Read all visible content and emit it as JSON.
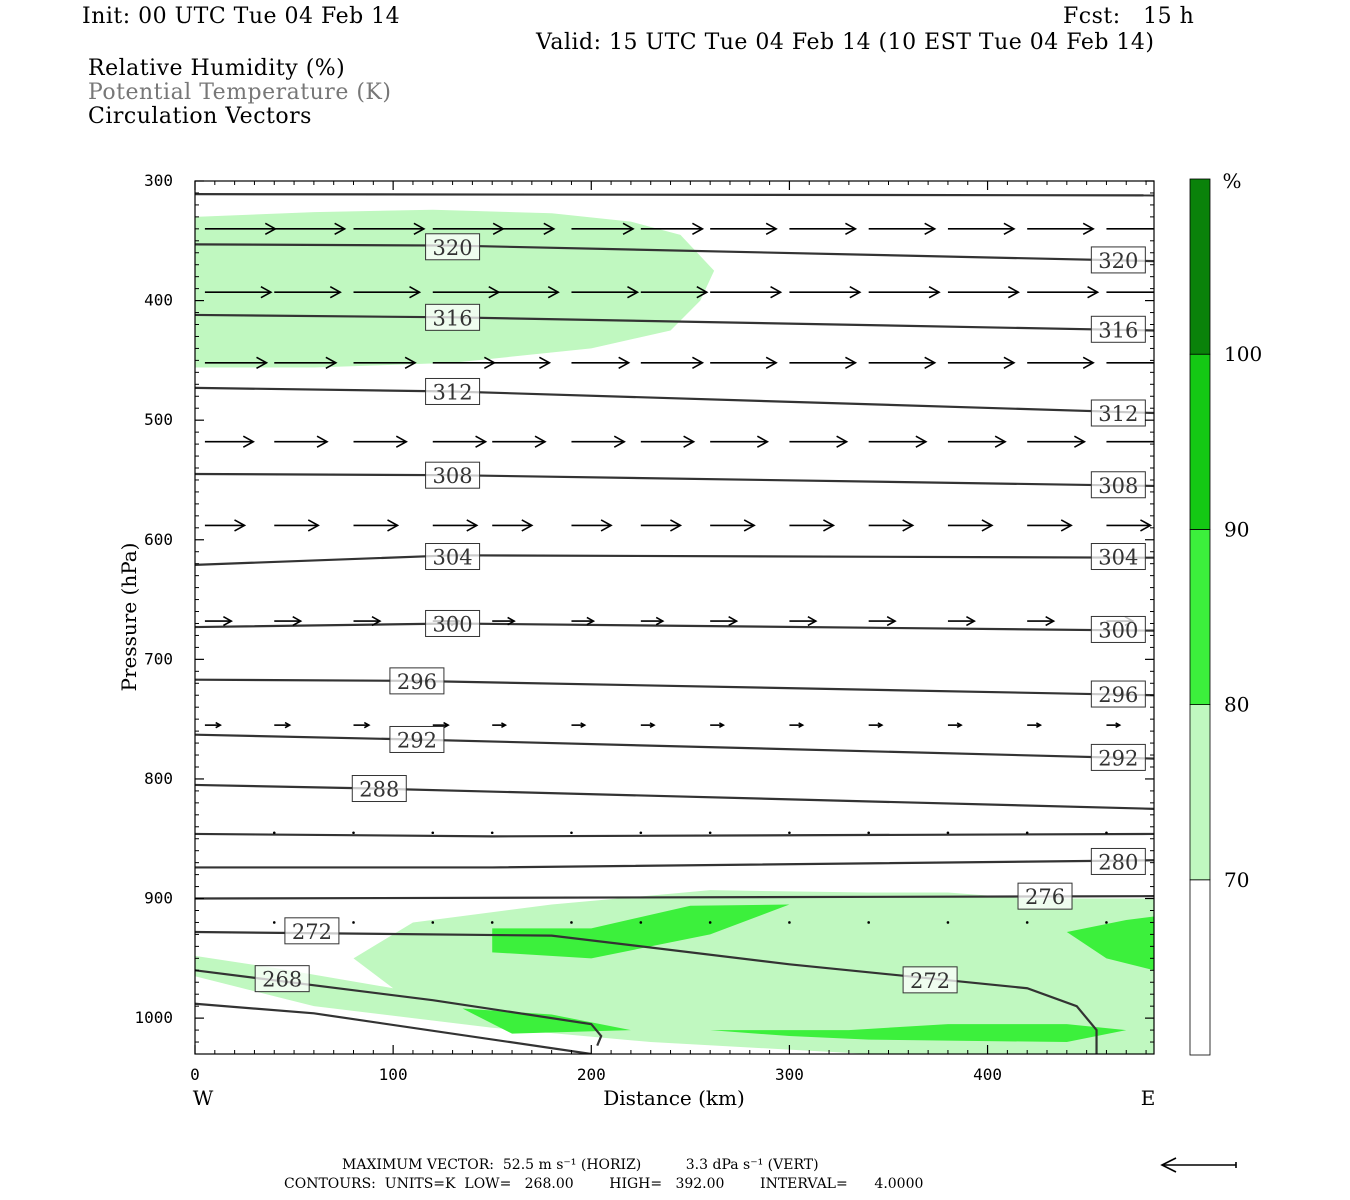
{
  "header": {
    "init": "Init: 00 UTC Tue 04 Feb 14",
    "fcst": "Fcst:   15 h",
    "valid": "Valid: 15 UTC Tue 04 Feb 14 (10 EST Tue 04 Feb 14)",
    "fields": [
      "Relative Humidity (%)",
      "Potential Temperature (K)",
      "Circulation Vectors"
    ]
  },
  "footer": {
    "max_vector": "MAXIMUM VECTOR:  52.5 m s⁻¹ (HORIZ)          3.3 dPa s⁻¹ (VERT)",
    "contours": "CONTOURS:  UNITS=K  LOW=   268.00        HIGH=   392.00        INTERVAL=      4.0000"
  },
  "colors": {
    "rh70": "#c0f8c0",
    "rh80": "#3cf03c",
    "rh90": "#14c814",
    "rh100": "#0a820a",
    "contour": "#333333"
  },
  "chart_data": {
    "type": "cross-section",
    "xlabel": "Distance (km)",
    "ylabel": "Pressure (hPa)",
    "xlim": [
      0,
      484
    ],
    "ylim": [
      1030,
      300
    ],
    "x_ticks": [
      0,
      100,
      200,
      300,
      400
    ],
    "y_ticks": [
      300,
      400,
      500,
      600,
      700,
      800,
      900,
      1000
    ],
    "x_end_labels": {
      "left": "W",
      "right": "E"
    },
    "colorbar": {
      "unit": "%",
      "levels": [
        70,
        80,
        90,
        100
      ],
      "labels": [
        "70",
        "80",
        "90",
        "100"
      ]
    },
    "theta_contours": [
      {
        "label": "",
        "points": [
          [
            0,
            311
          ],
          [
            484,
            312
          ]
        ]
      },
      {
        "label": "320",
        "points": [
          [
            0,
            353
          ],
          [
            130,
            354
          ],
          [
            484,
            367
          ]
        ],
        "label_at": [
          [
            130,
            355
          ],
          [
            466,
            366
          ]
        ]
      },
      {
        "label": "316",
        "points": [
          [
            0,
            412
          ],
          [
            130,
            414
          ],
          [
            484,
            425
          ]
        ],
        "label_at": [
          [
            130,
            414
          ],
          [
            466,
            424
          ]
        ]
      },
      {
        "label": "312",
        "points": [
          [
            0,
            473
          ],
          [
            130,
            476
          ],
          [
            484,
            494
          ]
        ],
        "label_at": [
          [
            130,
            476
          ],
          [
            466,
            494
          ]
        ]
      },
      {
        "label": "308",
        "points": [
          [
            0,
            545
          ],
          [
            130,
            546
          ],
          [
            484,
            555
          ]
        ],
        "label_at": [
          [
            130,
            546
          ],
          [
            466,
            554
          ]
        ]
      },
      {
        "label": "304",
        "points": [
          [
            0,
            621
          ],
          [
            130,
            613
          ],
          [
            484,
            615
          ]
        ],
        "label_at": [
          [
            130,
            614
          ],
          [
            466,
            614
          ]
        ]
      },
      {
        "label": "300",
        "points": [
          [
            0,
            673
          ],
          [
            130,
            670
          ],
          [
            484,
            676
          ]
        ],
        "label_at": [
          [
            130,
            670
          ],
          [
            466,
            675
          ]
        ]
      },
      {
        "label": "296",
        "points": [
          [
            0,
            717
          ],
          [
            110,
            718
          ],
          [
            484,
            730
          ]
        ],
        "label_at": [
          [
            112,
            718
          ],
          [
            466,
            729
          ]
        ]
      },
      {
        "label": "292",
        "points": [
          [
            0,
            763
          ],
          [
            110,
            767
          ],
          [
            484,
            783
          ]
        ],
        "label_at": [
          [
            112,
            767
          ],
          [
            466,
            782
          ]
        ]
      },
      {
        "label": "288",
        "points": [
          [
            0,
            805
          ],
          [
            90,
            808
          ],
          [
            484,
            825
          ]
        ],
        "label_at": [
          [
            93,
            808
          ]
        ]
      },
      {
        "label": "",
        "points": [
          [
            0,
            846
          ],
          [
            150,
            848
          ],
          [
            484,
            846
          ]
        ]
      },
      {
        "label": "280",
        "points": [
          [
            0,
            874
          ],
          [
            150,
            874
          ],
          [
            484,
            868
          ]
        ],
        "label_at": [
          [
            466,
            869
          ]
        ]
      },
      {
        "label": "276",
        "points": [
          [
            0,
            900
          ],
          [
            484,
            898
          ]
        ],
        "label_at": [
          [
            429,
            898
          ]
        ]
      },
      {
        "label": "272",
        "points": [
          [
            0,
            928
          ],
          [
            180,
            931
          ],
          [
            300,
            955
          ],
          [
            420,
            975
          ],
          [
            445,
            990
          ],
          [
            455,
            1010
          ],
          [
            455,
            1030
          ]
        ],
        "label_at": [
          [
            59,
            927
          ],
          [
            371,
            968
          ]
        ]
      },
      {
        "label": "268",
        "points": [
          [
            0,
            960
          ],
          [
            120,
            985
          ],
          [
            200,
            1005
          ],
          [
            205,
            1015
          ],
          [
            203,
            1023
          ]
        ],
        "label_at": [
          [
            44,
            967
          ]
        ]
      },
      {
        "label": "",
        "points": [
          [
            0,
            988
          ],
          [
            60,
            996
          ],
          [
            200,
            1030
          ]
        ]
      }
    ],
    "vector_levels": [
      {
        "p": 340,
        "x": [
          5,
          40,
          80,
          120,
          150,
          190,
          225,
          260,
          300,
          340,
          380,
          420,
          460
        ],
        "u": [
          32,
          32,
          32,
          32,
          28,
          28,
          28,
          30,
          30,
          30,
          30,
          30,
          30
        ]
      },
      {
        "p": 393,
        "x": [
          5,
          40,
          80,
          120,
          150,
          190,
          225,
          260,
          300,
          340,
          380,
          420,
          460
        ],
        "u": [
          30,
          30,
          30,
          30,
          30,
          30,
          30,
          32,
          32,
          32,
          32,
          32,
          32
        ]
      },
      {
        "p": 452,
        "x": [
          5,
          40,
          80,
          120,
          150,
          190,
          225,
          260,
          300,
          340,
          380,
          420,
          460
        ],
        "u": [
          28,
          28,
          28,
          28,
          26,
          26,
          28,
          30,
          30,
          30,
          30,
          30,
          30
        ]
      },
      {
        "p": 518,
        "x": [
          5,
          40,
          80,
          120,
          150,
          190,
          225,
          260,
          300,
          340,
          380,
          420,
          460
        ],
        "u": [
          22,
          24,
          24,
          24,
          24,
          24,
          24,
          26,
          26,
          26,
          26,
          26,
          26
        ]
      },
      {
        "p": 588,
        "x": [
          5,
          40,
          80,
          120,
          150,
          190,
          225,
          260,
          300,
          340,
          380,
          420,
          460
        ],
        "u": [
          18,
          20,
          20,
          20,
          18,
          18,
          18,
          20,
          20,
          20,
          20,
          20,
          20
        ]
      },
      {
        "p": 668,
        "x": [
          5,
          40,
          80,
          120,
          150,
          190,
          225,
          260,
          300,
          340,
          380,
          420,
          460
        ],
        "u": [
          12,
          12,
          12,
          12,
          10,
          10,
          10,
          12,
          12,
          12,
          12,
          12,
          12
        ]
      },
      {
        "p": 755,
        "x": [
          5,
          40,
          80,
          120,
          150,
          190,
          225,
          260,
          300,
          340,
          380,
          420,
          460
        ],
        "u": [
          7,
          7,
          7,
          7,
          6,
          6,
          6,
          6,
          6,
          6,
          6,
          6,
          6
        ]
      },
      {
        "p": 845,
        "x": [
          40,
          80,
          120,
          150,
          190,
          225,
          260,
          300,
          340,
          380,
          420,
          460
        ],
        "u": [
          1,
          1,
          1,
          1,
          1,
          1,
          1,
          1,
          1,
          1,
          1,
          1
        ]
      },
      {
        "p": 920,
        "x": [
          40,
          80,
          120,
          150,
          190,
          225,
          260,
          300,
          340,
          380,
          420,
          460
        ],
        "u": [
          1,
          1,
          1,
          1,
          1,
          1,
          1,
          1,
          1,
          1,
          1,
          1
        ]
      }
    ],
    "rh_regions": [
      {
        "level": 70,
        "points": [
          [
            0,
            330
          ],
          [
            60,
            326
          ],
          [
            120,
            324
          ],
          [
            180,
            327
          ],
          [
            220,
            334
          ],
          [
            245,
            345
          ],
          [
            262,
            375
          ],
          [
            255,
            400
          ],
          [
            240,
            425
          ],
          [
            200,
            440
          ],
          [
            130,
            452
          ],
          [
            60,
            456
          ],
          [
            0,
            456
          ]
        ]
      },
      {
        "level": 70,
        "points": [
          [
            80,
            950
          ],
          [
            110,
            920
          ],
          [
            180,
            905
          ],
          [
            260,
            893
          ],
          [
            340,
            895
          ],
          [
            380,
            895
          ],
          [
            420,
            900
          ],
          [
            484,
            900
          ],
          [
            484,
            1030
          ],
          [
            340,
            1030
          ],
          [
            230,
            1020
          ],
          [
            150,
            1008
          ],
          [
            60,
            990
          ],
          [
            0,
            965
          ],
          [
            0,
            948
          ],
          [
            40,
            958
          ],
          [
            100,
            975
          ]
        ]
      },
      {
        "level": 80,
        "points": [
          [
            150,
            925
          ],
          [
            200,
            925
          ],
          [
            250,
            906
          ],
          [
            300,
            905
          ],
          [
            260,
            930
          ],
          [
            200,
            950
          ],
          [
            150,
            945
          ]
        ]
      },
      {
        "level": 80,
        "points": [
          [
            440,
            928
          ],
          [
            470,
            918
          ],
          [
            484,
            915
          ],
          [
            484,
            960
          ],
          [
            460,
            950
          ]
        ]
      },
      {
        "level": 80,
        "points": [
          [
            135,
            992
          ],
          [
            180,
            997
          ],
          [
            220,
            1010
          ],
          [
            160,
            1013
          ]
        ]
      },
      {
        "level": 80,
        "points": [
          [
            260,
            1010
          ],
          [
            330,
            1010
          ],
          [
            380,
            1005
          ],
          [
            440,
            1005
          ],
          [
            470,
            1010
          ],
          [
            440,
            1020
          ],
          [
            340,
            1018
          ],
          [
            300,
            1015
          ]
        ]
      }
    ]
  }
}
